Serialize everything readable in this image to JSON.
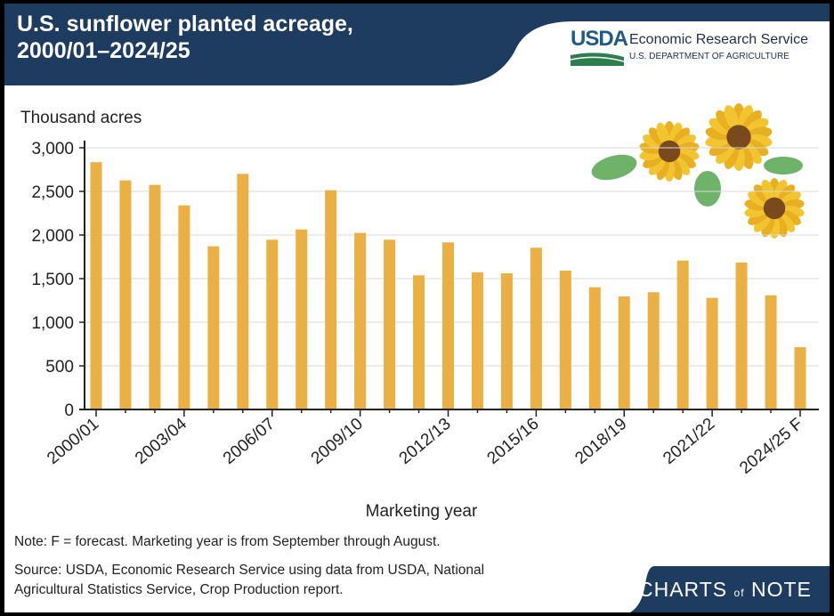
{
  "header": {
    "title_line1": "U.S. sunflower planted acreage,",
    "title_line2": "2000/01–2024/25",
    "logo_mark": "USDA",
    "agency": "Economic Research Service",
    "department": "U.S. DEPARTMENT OF AGRICULTURE"
  },
  "footer": {
    "note": "Note: F = forecast. Marketing year is from September through August.",
    "source_line1": "Source: USDA, Economic Research Service using data from USDA, National",
    "source_line2": "Agricultural Statistics Service, Crop Production report.",
    "brand_charts": "CHARTS",
    "brand_of": "of",
    "brand_note": "NOTE"
  },
  "colors": {
    "bar": "#EBB044",
    "header": "#1d3c5f",
    "grid": "#d9d9d9"
  },
  "chart_data": {
    "type": "bar",
    "title": "U.S. sunflower planted acreage, 2000/01–2024/25",
    "ylabel": "Thousand acres",
    "xlabel": "Marketing year",
    "ylim": [
      0,
      3000
    ],
    "yticks": [
      "0",
      "500",
      "1,000",
      "1,500",
      "2,000",
      "2,500",
      "3,000"
    ],
    "grid": true,
    "categories": [
      "2000/01",
      "2001/02",
      "2002/03",
      "2003/04",
      "2004/05",
      "2005/06",
      "2006/07",
      "2007/08",
      "2008/09",
      "2009/10",
      "2010/11",
      "2011/12",
      "2012/13",
      "2013/14",
      "2014/15",
      "2015/16",
      "2016/17",
      "2017/18",
      "2018/19",
      "2019/20",
      "2020/21",
      "2021/22",
      "2022/23",
      "2023/24",
      "2024/25 F"
    ],
    "tick_labels": [
      "2000/01",
      "2003/04",
      "2006/07",
      "2009/10",
      "2012/13",
      "2015/16",
      "2018/19",
      "2021/22",
      "2024/25 F"
    ],
    "values": [
      2835,
      2626,
      2575,
      2340,
      1870,
      2701,
      1946,
      2064,
      2513,
      2024,
      1946,
      1538,
      1915,
      1571,
      1561,
      1854,
      1592,
      1401,
      1296,
      1344,
      1707,
      1279,
      1684,
      1309,
      714
    ]
  }
}
